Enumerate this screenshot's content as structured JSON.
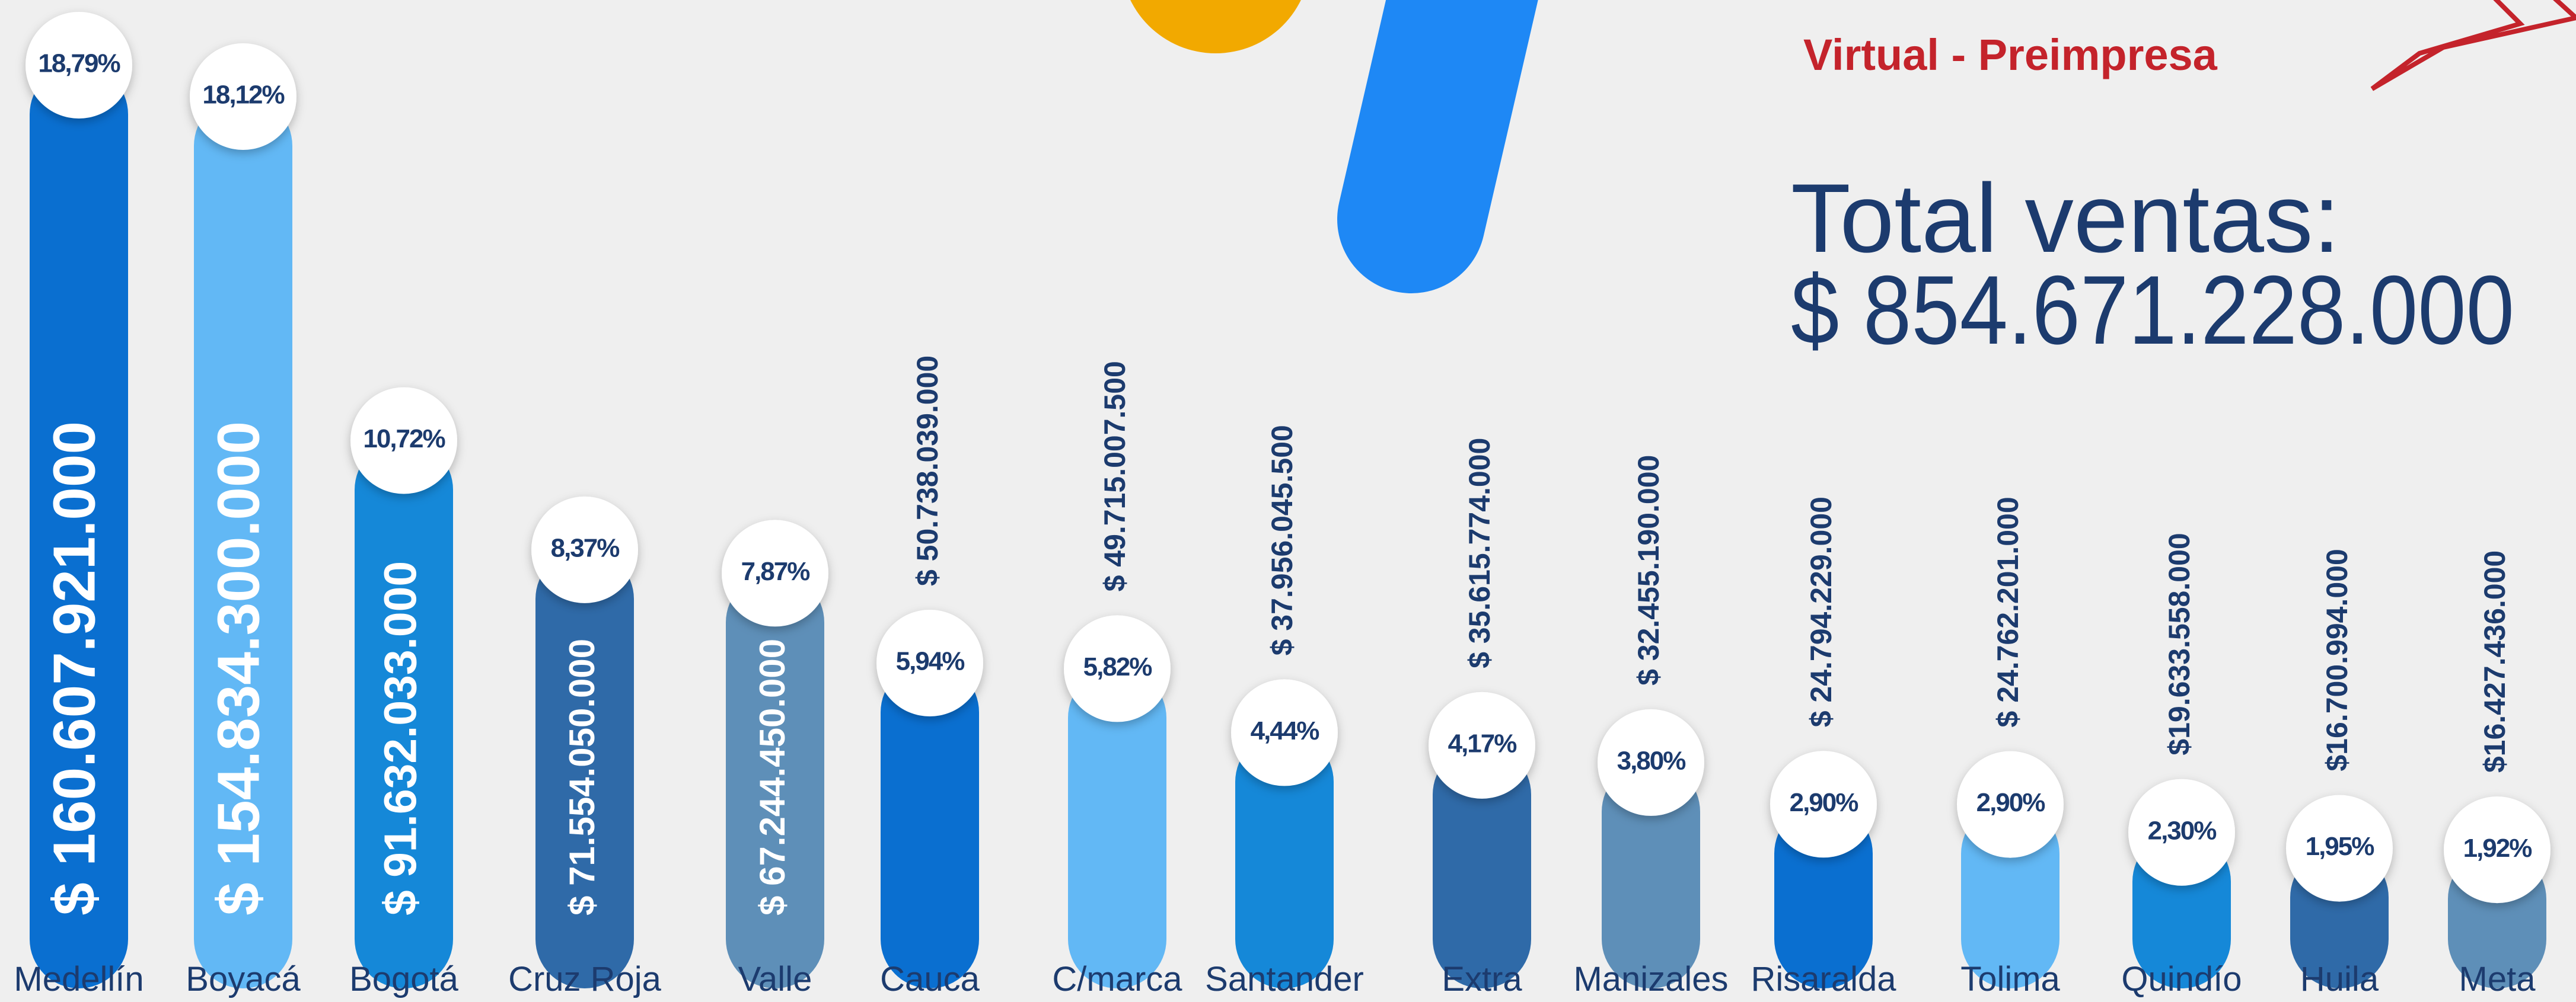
{
  "chart_data": {
    "type": "bar",
    "subtitle": "Virtual - Preimpresa",
    "total_label": "Total ventas:",
    "total_value": "$ 854.671.228.000",
    "categories": [
      "Medellín",
      "Boyacá",
      "Bogotá",
      "Cruz Roja",
      "Valle",
      "Cauca",
      "C/marca",
      "Santander",
      "Extra",
      "Manizales",
      "Risaralda",
      "Tolima",
      "Quindío",
      "Huila",
      "Meta"
    ],
    "values": [
      160607921000,
      154834300000,
      91632033000,
      71554050000,
      67244450000,
      50738039000,
      49715007500,
      37956045500,
      35615774000,
      32455190000,
      24794229000,
      24762201000,
      19633558000,
      16700994000,
      16427436000
    ],
    "value_labels": [
      "$ 160.607.921.000",
      "$ 154.834.300.000",
      "$ 91.632.033.000",
      "$ 71.554.050.000",
      "$ 67.244.450.000",
      "$ 50.738.039.000",
      "$ 49.715.007.500",
      "$ 37.956.045.500",
      "$ 35.615.774.000",
      "$ 32.455.190.000",
      "$ 24.794.229.000",
      "$ 24.762.201.000",
      "$19.633.558.000",
      "$16.700.994.000",
      "$16.427.436.000"
    ],
    "shares": [
      18.79,
      18.12,
      10.72,
      8.37,
      7.87,
      5.94,
      5.82,
      4.44,
      4.17,
      3.8,
      2.9,
      2.9,
      2.3,
      1.95,
      1.92
    ],
    "share_labels": [
      "18,79%",
      "18,12%",
      "10,72%",
      "8,37%",
      "7,87%",
      "5,94%",
      "5,82%",
      "4,44%",
      "4,17%",
      "3,80%",
      "2,90%",
      "2,90%",
      "2,30%",
      "1,95%",
      "1,92%"
    ],
    "colors": [
      "#0a6fd0",
      "#62b8f5",
      "#1588d8",
      "#2f6aa8",
      "#5e8fb8",
      "#0a6fd0",
      "#62b8f5",
      "#1588d8",
      "#2f6aa8",
      "#5e8fb8",
      "#0a6fd0",
      "#62b8f5",
      "#1588d8",
      "#2f6aa8",
      "#5e8fb8"
    ]
  }
}
